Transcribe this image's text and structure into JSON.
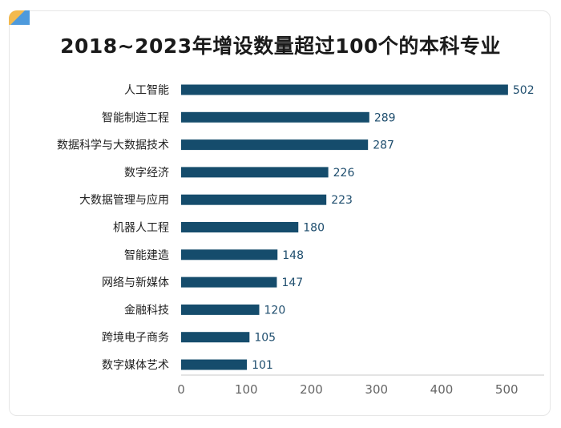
{
  "title": "2018~2023年增设数量超过100个的本科专业",
  "colors": {
    "bar": "#154c6c",
    "value_text": "#1f4e6e",
    "axis": "#c8c8c8"
  },
  "chart_data": {
    "type": "bar",
    "orientation": "horizontal",
    "title": "2018~2023年增设数量超过100个的本科专业",
    "categories": [
      "人工智能",
      "智能制造工程",
      "数据科学与大数据技术",
      "数字经济",
      "大数据管理与应用",
      "机器人工程",
      "智能建造",
      "网络与新媒体",
      "金融科技",
      "跨境电子商务",
      "数字媒体艺术"
    ],
    "values": [
      502,
      289,
      287,
      226,
      223,
      180,
      148,
      147,
      120,
      105,
      101
    ],
    "xlim": [
      0,
      560
    ],
    "x_ticks": [
      0,
      100,
      200,
      300,
      400,
      500
    ],
    "grid": false,
    "legend": "none"
  }
}
